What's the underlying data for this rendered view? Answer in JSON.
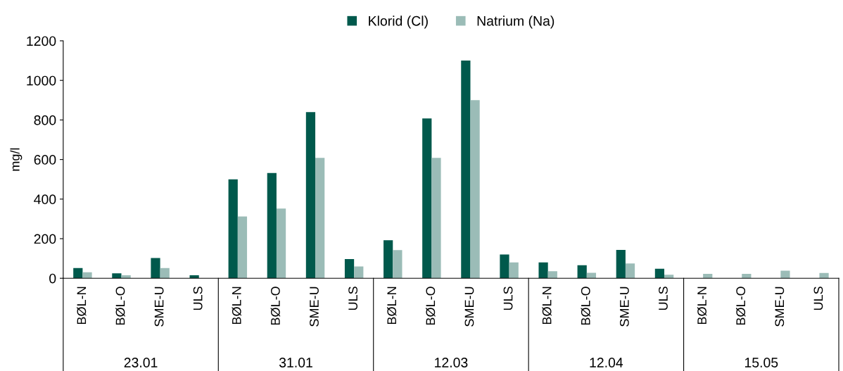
{
  "chart_data": {
    "type": "bar",
    "categories": [
      "BØL-N",
      "BØL-O",
      "SME-U",
      "ULS",
      "BØL-N",
      "BØL-O",
      "SME-U",
      "ULS",
      "BØL-N",
      "BØL-O",
      "SME-U",
      "ULS",
      "BØL-N",
      "BØL-O",
      "SME-U",
      "ULS",
      "BØL-N",
      "BØL-O",
      "SME-U",
      "ULS"
    ],
    "series": [
      {
        "name": "Klorid (Cl)",
        "color": "#00594c",
        "values": [
          52,
          25,
          102,
          15,
          500,
          532,
          840,
          97,
          192,
          808,
          1100,
          120,
          80,
          66,
          143,
          48,
          null,
          null,
          null,
          null
        ]
      },
      {
        "name": "Natrium (Na)",
        "color": "#9bbcb7",
        "values": [
          30,
          15,
          52,
          null,
          312,
          352,
          608,
          60,
          142,
          608,
          900,
          80,
          36,
          28,
          75,
          18,
          22,
          22,
          38,
          27
        ]
      }
    ],
    "ylabel": "mg/l",
    "ylim": [
      0,
      1200
    ],
    "yticks": [
      0,
      200,
      400,
      600,
      800,
      1000,
      1200
    ],
    "annotations": [
      "23.01",
      "31.01",
      "12.03",
      "12.04",
      "15.05"
    ],
    "legend": "top",
    "grid": false
  }
}
